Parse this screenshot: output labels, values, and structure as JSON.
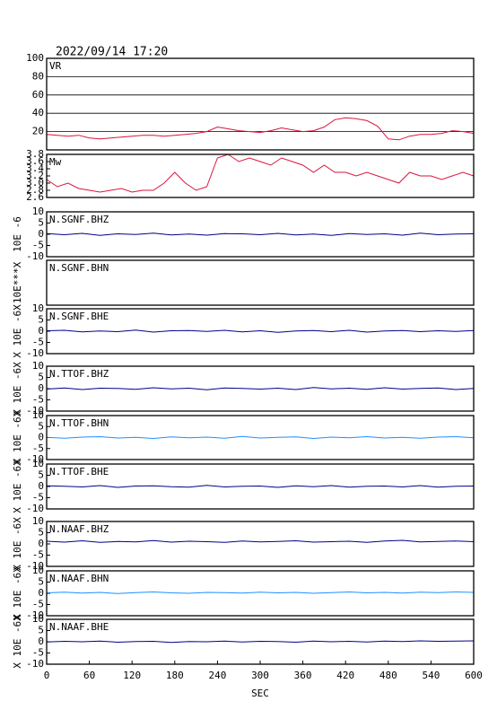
{
  "header": {
    "timestamp": "2022/09/14 17:20"
  },
  "chart_data": [
    {
      "type": "line",
      "title": "VR",
      "x": [
        0,
        15,
        30,
        45,
        60,
        75,
        90,
        105,
        120,
        135,
        150,
        165,
        180,
        195,
        210,
        225,
        240,
        255,
        270,
        285,
        300,
        315,
        330,
        345,
        360,
        375,
        390,
        405,
        420,
        435,
        450,
        465,
        480,
        495,
        510,
        525,
        540,
        555,
        570,
        585,
        600
      ],
      "series": [
        {
          "color": "#dc143c",
          "values": [
            17,
            16,
            15,
            16,
            13,
            12,
            13,
            14,
            15,
            16,
            16,
            15,
            16,
            17,
            18,
            20,
            25,
            23,
            21,
            20,
            19,
            21,
            24,
            22,
            20,
            21,
            25,
            33,
            35,
            34,
            32,
            26,
            12,
            11,
            15,
            17,
            17,
            18,
            21,
            20,
            18
          ]
        }
      ],
      "xlim": [
        0,
        600
      ],
      "ylim": [
        0,
        100
      ],
      "yticks": [
        20,
        40,
        60,
        80,
        100
      ],
      "grid": true
    },
    {
      "type": "line",
      "title": "Mw",
      "x": [
        0,
        15,
        30,
        45,
        60,
        75,
        90,
        105,
        120,
        135,
        150,
        165,
        180,
        195,
        210,
        225,
        240,
        255,
        270,
        285,
        300,
        315,
        330,
        345,
        360,
        375,
        390,
        405,
        420,
        435,
        450,
        465,
        480,
        495,
        510,
        525,
        540,
        555,
        570,
        585,
        600
      ],
      "series": [
        {
          "color": "#dc143c",
          "values": [
            3.1,
            2.9,
            3.0,
            2.85,
            2.8,
            2.75,
            2.8,
            2.85,
            2.75,
            2.8,
            2.8,
            3.0,
            3.3,
            3.0,
            2.8,
            2.9,
            3.7,
            3.8,
            3.6,
            3.7,
            3.6,
            3.5,
            3.7,
            3.6,
            3.5,
            3.3,
            3.5,
            3.3,
            3.3,
            3.2,
            3.3,
            3.2,
            3.1,
            3.0,
            3.3,
            3.2,
            3.2,
            3.1,
            3.2,
            3.3,
            3.2
          ]
        }
      ],
      "xlim": [
        0,
        600
      ],
      "ylim": [
        2.6,
        3.8
      ],
      "yticks": [
        2.6,
        2.8,
        {
          "value": 3,
          "label": "3.0"
        },
        3.2,
        3.4,
        3.6,
        3.8
      ],
      "grid": false
    },
    {
      "type": "line",
      "title": "N.SGNF.BHZ",
      "y_label": "10E -6",
      "x": [
        0,
        25,
        50,
        75,
        100,
        125,
        150,
        175,
        200,
        225,
        250,
        275,
        300,
        325,
        350,
        375,
        400,
        425,
        450,
        475,
        500,
        525,
        550,
        575,
        600
      ],
      "series": [
        {
          "color": "#00008b",
          "values": [
            0.3,
            -0.2,
            0.4,
            -0.5,
            0.2,
            -0.1,
            0.5,
            -0.3,
            0.1,
            -0.4,
            0.3,
            0.2,
            -0.2,
            0.4,
            -0.3,
            0.1,
            -0.5,
            0.3,
            -0.1,
            0.2,
            -0.4,
            0.5,
            -0.2,
            0.1,
            0.2
          ]
        }
      ],
      "xlim": [
        0,
        600
      ],
      "ylim": [
        -10,
        10
      ],
      "yticks": [
        -10,
        -5,
        0,
        5,
        10
      ]
    },
    {
      "type": "line",
      "title": "N.SGNF.BHN",
      "y_label": "10E***X",
      "xlim": [
        0,
        600
      ]
    },
    {
      "type": "line",
      "title": "N.SGNF.BHE",
      "y_label": "X 10E -6X",
      "x": [
        0,
        25,
        50,
        75,
        100,
        125,
        150,
        175,
        200,
        225,
        250,
        275,
        300,
        325,
        350,
        375,
        400,
        425,
        450,
        475,
        500,
        525,
        550,
        575,
        600
      ],
      "series": [
        {
          "color": "#00008b",
          "values": [
            0.2,
            0.4,
            -0.3,
            0.1,
            -0.2,
            0.5,
            -0.4,
            0.2,
            0.3,
            -0.1,
            0.4,
            -0.3,
            0.2,
            -0.5,
            0.1,
            0.3,
            -0.2,
            0.4,
            -0.4,
            0.1,
            0.3,
            -0.2,
            0.2,
            -0.1,
            0.3
          ]
        }
      ],
      "xlim": [
        0,
        600
      ],
      "ylim": [
        -10,
        10
      ],
      "yticks": [
        -10,
        -5,
        0,
        5,
        10
      ]
    },
    {
      "type": "line",
      "title": "N.TTOF.BHZ",
      "y_label": "X 10E -6X",
      "x": [
        0,
        25,
        50,
        75,
        100,
        125,
        150,
        175,
        200,
        225,
        250,
        275,
        300,
        325,
        350,
        375,
        400,
        425,
        450,
        475,
        500,
        525,
        550,
        575,
        600
      ],
      "series": [
        {
          "color": "#00008b",
          "values": [
            -0.2,
            0.3,
            -0.4,
            0.2,
            0.1,
            -0.3,
            0.4,
            -0.1,
            0.2,
            -0.5,
            0.3,
            0.1,
            -0.2,
            0.2,
            -0.4,
            0.5,
            -0.1,
            0.2,
            -0.3,
            0.4,
            -0.2,
            0.1,
            0.3,
            -0.4,
            0.1
          ]
        }
      ],
      "xlim": [
        0,
        600
      ],
      "ylim": [
        -10,
        10
      ],
      "yticks": [
        -10,
        -5,
        0,
        5,
        10
      ]
    },
    {
      "type": "line",
      "title": "N.TTOF.BHN",
      "y_label": "X 10E -6X",
      "x": [
        0,
        25,
        50,
        75,
        100,
        125,
        150,
        175,
        200,
        225,
        250,
        275,
        300,
        325,
        350,
        375,
        400,
        425,
        450,
        475,
        500,
        525,
        550,
        575,
        600
      ],
      "series": [
        {
          "color": "#1e90ff",
          "values": [
            0.1,
            -0.3,
            0.2,
            0.4,
            -0.2,
            0.1,
            -0.4,
            0.3,
            -0.1,
            0.2,
            -0.3,
            0.5,
            -0.2,
            0.1,
            0.3,
            -0.4,
            0.2,
            -0.1,
            0.4,
            -0.2,
            0.1,
            -0.3,
            0.2,
            0.4,
            -0.1
          ]
        }
      ],
      "xlim": [
        0,
        600
      ],
      "ylim": [
        -10,
        10
      ],
      "yticks": [
        -10,
        -5,
        0,
        5,
        10
      ]
    },
    {
      "type": "line",
      "title": "N.TTOF.BHE",
      "y_label": "X 10E -6X",
      "x": [
        0,
        25,
        50,
        75,
        100,
        125,
        150,
        175,
        200,
        225,
        250,
        275,
        300,
        325,
        350,
        375,
        400,
        425,
        450,
        475,
        500,
        525,
        550,
        575,
        600
      ],
      "series": [
        {
          "color": "#00008b",
          "values": [
            0.3,
            0.1,
            -0.2,
            0.4,
            -0.4,
            0.2,
            0.3,
            -0.1,
            -0.3,
            0.5,
            -0.2,
            0.1,
            0.2,
            -0.4,
            0.3,
            -0.1,
            0.4,
            -0.3,
            0.1,
            0.2,
            -0.2,
            0.4,
            -0.3,
            0.1,
            0.2
          ]
        }
      ],
      "xlim": [
        0,
        600
      ],
      "ylim": [
        -10,
        10
      ],
      "yticks": [
        -10,
        -5,
        0,
        5,
        10
      ]
    },
    {
      "type": "line",
      "title": "N.NAAF.BHZ",
      "y_label": "X 10E -6X",
      "x": [
        0,
        25,
        50,
        75,
        100,
        125,
        150,
        175,
        200,
        225,
        250,
        275,
        300,
        325,
        350,
        375,
        400,
        425,
        450,
        475,
        500,
        525,
        550,
        575,
        600
      ],
      "series": [
        {
          "color": "#00008b",
          "values": [
            1.2,
            0.8,
            1.4,
            0.7,
            1.1,
            0.9,
            1.5,
            0.8,
            1.2,
            1.0,
            0.7,
            1.3,
            0.9,
            1.1,
            1.4,
            0.8,
            1.0,
            1.2,
            0.7,
            1.3,
            1.6,
            0.9,
            1.1,
            1.3,
            1.0
          ]
        }
      ],
      "xlim": [
        0,
        600
      ],
      "ylim": [
        -10,
        10
      ],
      "yticks": [
        -10,
        -5,
        0,
        5,
        10
      ]
    },
    {
      "type": "line",
      "title": "N.NAAF.BHN",
      "y_label": "X 10E -6X",
      "x": [
        0,
        25,
        50,
        75,
        100,
        125,
        150,
        175,
        200,
        225,
        250,
        275,
        300,
        325,
        350,
        375,
        400,
        425,
        450,
        475,
        500,
        525,
        550,
        575,
        600
      ],
      "series": [
        {
          "color": "#1e90ff",
          "values": [
            0.2,
            0.5,
            0.1,
            0.4,
            -0.1,
            0.3,
            0.6,
            0.2,
            0.0,
            0.4,
            0.3,
            0.1,
            0.5,
            0.2,
            0.4,
            0.0,
            0.3,
            0.6,
            0.2,
            0.4,
            0.1,
            0.5,
            0.3,
            0.6,
            0.4
          ]
        }
      ],
      "xlim": [
        0,
        600
      ],
      "ylim": [
        -10,
        10
      ],
      "yticks": [
        -10,
        -5,
        0,
        5,
        10
      ]
    },
    {
      "type": "line",
      "title": "N.NAAF.BHE",
      "y_label": "X 10E -6X",
      "x": [
        0,
        25,
        50,
        75,
        100,
        125,
        150,
        175,
        200,
        225,
        250,
        275,
        300,
        325,
        350,
        375,
        400,
        425,
        450,
        475,
        500,
        525,
        550,
        575,
        600
      ],
      "series": [
        {
          "color": "#00008b",
          "values": [
            -0.1,
            0.2,
            0.0,
            0.3,
            -0.2,
            0.1,
            0.2,
            -0.3,
            0.1,
            0.0,
            0.3,
            -0.1,
            0.2,
            0.1,
            -0.2,
            0.3,
            0.0,
            0.2,
            -0.1,
            0.3,
            0.1,
            0.4,
            0.2,
            0.3,
            0.4
          ]
        }
      ],
      "xlim": [
        0,
        600
      ],
      "ylim": [
        -10,
        10
      ],
      "yticks": [
        -10,
        -5,
        0,
        5,
        10
      ],
      "xticks": [
        0,
        60,
        120,
        180,
        240,
        300,
        360,
        420,
        480,
        540,
        600
      ],
      "x_label": "SEC"
    }
  ]
}
